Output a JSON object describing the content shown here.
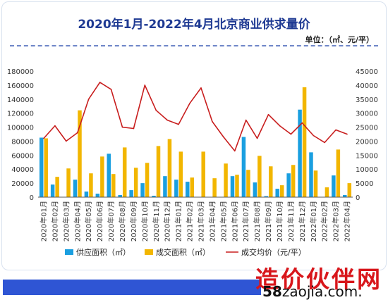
{
  "chart_data": {
    "type": "bar+line",
    "title": "2020年1月-2022年4月北京商业供求量价",
    "unit_label": "单位：（㎡、元/平）",
    "categories": [
      "2020年01月",
      "2020年02月",
      "2020年03月",
      "2020年04月",
      "2020年05月",
      "2020年06月",
      "2020年07月",
      "2020年08月",
      "2020年09月",
      "2020年10月",
      "2020年11月",
      "2020年12月",
      "2021年01月",
      "2021年02月",
      "2021年03月",
      "2021年04月",
      "2021年05月",
      "2021年06月",
      "2021年07月",
      "2021年08月",
      "2021年09月",
      "2021年10月",
      "2021年11月",
      "2021年12月",
      "2022年01月",
      "2022年02月",
      "2022年03月",
      "2022年04月"
    ],
    "left_axis": {
      "min": 0,
      "max": 180000,
      "step": 20000,
      "ticks": [
        "0",
        "20000",
        "40000",
        "60000",
        "80000",
        "100000",
        "120000",
        "140000",
        "160000",
        "180000"
      ]
    },
    "right_axis": {
      "min": 0,
      "max": 45000,
      "step": 5000,
      "ticks": [
        "0",
        "5000",
        "10000",
        "15000",
        "20000",
        "25000",
        "30000",
        "35000",
        "40000",
        "45000"
      ]
    },
    "series": [
      {
        "name": "供应面积（㎡）",
        "type": "bar",
        "axis": "left",
        "color": "#1a9fe0",
        "values": [
          85000,
          18000,
          0,
          25000,
          8000,
          5000,
          62000,
          3000,
          10000,
          20000,
          2000,
          30000,
          25000,
          22000,
          0,
          0,
          0,
          30000,
          86000,
          21000,
          1500,
          12000,
          34000,
          125000,
          64000,
          0,
          31000,
          3000
        ]
      },
      {
        "name": "成交面积（㎡）",
        "type": "bar",
        "axis": "left",
        "color": "#f2b600",
        "values": [
          84000,
          29000,
          41000,
          124000,
          34000,
          58000,
          33000,
          71000,
          42000,
          49000,
          73000,
          83000,
          65000,
          28000,
          65000,
          27000,
          48000,
          32000,
          39000,
          59000,
          44000,
          17000,
          46000,
          157000,
          38000,
          14000,
          68000,
          20000
        ]
      },
      {
        "name": "成交均价（元/平）",
        "type": "line",
        "axis": "right",
        "color": "#c81e1e",
        "values": [
          21000,
          25500,
          20000,
          23000,
          35000,
          41000,
          38500,
          25000,
          24500,
          40000,
          31000,
          27500,
          26000,
          33500,
          39000,
          27000,
          21500,
          16500,
          27500,
          21000,
          29500,
          25500,
          22500,
          26500,
          22000,
          19500,
          24000,
          22500
        ]
      }
    ],
    "legend_position": "bottom",
    "grid": false
  },
  "branding": {
    "name": "造价伙伴网",
    "site_prefix": "58",
    "site_rest": "zaojia.com."
  }
}
